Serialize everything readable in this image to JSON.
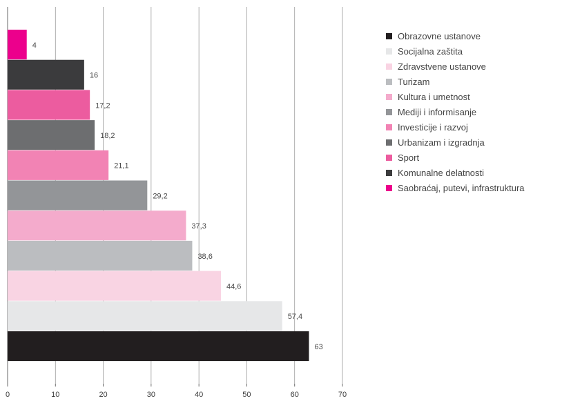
{
  "chart_data": {
    "type": "bar",
    "orientation": "horizontal",
    "title": "",
    "xlabel": "",
    "ylabel": "",
    "xlim": [
      0,
      70
    ],
    "x_ticks": [
      0,
      10,
      20,
      30,
      40,
      50,
      60,
      70
    ],
    "grid": "vertical",
    "legend_position": "right",
    "categories": [
      "Obrazovne ustanove",
      "Socijalna zaštita",
      "Zdravstvene ustanove",
      "Turizam",
      "Kultura i umetnost",
      "Mediji i informisanje",
      "Investicije i razvoj",
      "Urbanizam i izgradnja",
      "Sport",
      "Komunalne delatnosti",
      "Saobraćaj, putevi, infrastruktura"
    ],
    "values": [
      63,
      57.4,
      44.6,
      38.6,
      37.3,
      29.2,
      21.1,
      18.2,
      17.2,
      16,
      4
    ],
    "value_labels": [
      "63",
      "57,4",
      "44,6",
      "38,6",
      "37,3",
      "29,2",
      "21,1",
      "18,2",
      "17,2",
      "16",
      "4"
    ],
    "colors": [
      "#221e1f",
      "#e6e7e8",
      "#f9d4e3",
      "#bbbdc0",
      "#f4abcc",
      "#939598",
      "#f283b4",
      "#6d6e70",
      "#ec5c9f",
      "#3b3b3d",
      "#ec008c"
    ]
  }
}
